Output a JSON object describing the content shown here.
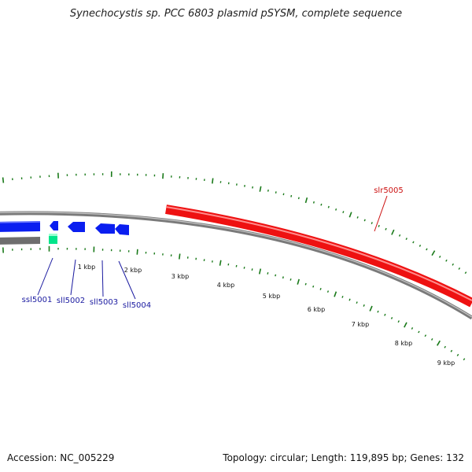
{
  "title": "Synechocystis sp. PCC 6803 plasmid pSYSM, complete sequence",
  "footer": {
    "accession": "Accession: NC_005229",
    "summary": "Topology: circular; Length: 119,895 bp; Genes: 132"
  },
  "scale_labels": [
    "1 kbp",
    "2 kbp",
    "3 kbp",
    "4 kbp",
    "5 kbp",
    "6 kbp",
    "7 kbp",
    "8 kbp",
    "9 kbp"
  ],
  "genes": [
    {
      "name": "ssl5001",
      "strand": "reverse",
      "color": "#00e58a"
    },
    {
      "name": "sll5002",
      "strand": "reverse",
      "color": "#0a1ef0"
    },
    {
      "name": "sll5003",
      "strand": "reverse",
      "color": "#0a1ef0"
    },
    {
      "name": "sll5004",
      "strand": "reverse",
      "color": "#0a1ef0"
    },
    {
      "name": "slr5005",
      "strand": "forward",
      "color": "#ee1111"
    }
  ],
  "colors": {
    "backbone": "#808080",
    "ticks": "#1a7a1a",
    "forward_gene": "#ee1111",
    "reverse_gene": "#0a1ef0",
    "label_blue": "#1a1aa0",
    "label_red": "#cc1111"
  }
}
